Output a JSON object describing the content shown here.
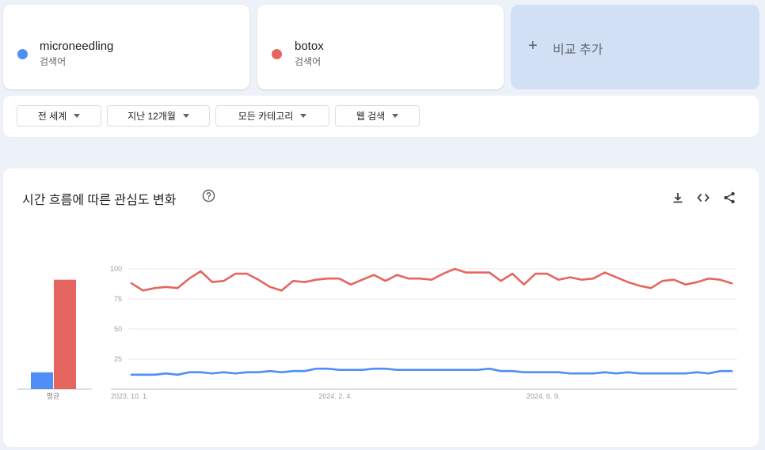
{
  "terms": [
    {
      "name": "microneedling",
      "kind": "검색어",
      "color": "#4f8ef7"
    },
    {
      "name": "botox",
      "kind": "검색어",
      "color": "#e5665e"
    }
  ],
  "add_compare": {
    "plus": "+",
    "label": "비교 추가"
  },
  "filters": [
    {
      "label": "전 세계"
    },
    {
      "label": "지난 12개월"
    },
    {
      "label": "모든 카테고리"
    },
    {
      "label": "웹 검색"
    }
  ],
  "panel": {
    "title": "시간 흐름에 따른 관심도 변화"
  },
  "chart_data": [
    {
      "type": "bar",
      "categories": [
        "평균"
      ],
      "series": [
        {
          "name": "microneedling",
          "values": [
            14
          ],
          "color": "#4f8ef7"
        },
        {
          "name": "botox",
          "values": [
            91
          ],
          "color": "#e5665e"
        }
      ]
    },
    {
      "type": "line",
      "y_ticks": [
        25,
        50,
        75,
        100
      ],
      "ylim": [
        0,
        100
      ],
      "x_tick_labels": [
        {
          "label": "2023. 10. 1.",
          "index": 0
        },
        {
          "label": "2024. 2. 4.",
          "index": 18
        },
        {
          "label": "2024. 6. 9.",
          "index": 36
        }
      ],
      "grid": true,
      "series": [
        {
          "name": "microneedling",
          "color": "#4f8ef7",
          "values": [
            12,
            12,
            12,
            13,
            12,
            14,
            14,
            13,
            14,
            13,
            14,
            14,
            15,
            14,
            15,
            15,
            17,
            17,
            16,
            16,
            16,
            17,
            17,
            16,
            16,
            16,
            16,
            16,
            16,
            16,
            16,
            17,
            15,
            15,
            14,
            14,
            14,
            14,
            13,
            13,
            13,
            14,
            13,
            14,
            13,
            13,
            13,
            13,
            13,
            14,
            13,
            15,
            15
          ]
        },
        {
          "name": "botox",
          "color": "#e5665e",
          "values": [
            88,
            82,
            84,
            85,
            84,
            92,
            98,
            89,
            90,
            96,
            96,
            91,
            85,
            82,
            90,
            89,
            91,
            92,
            92,
            87,
            91,
            95,
            90,
            95,
            92,
            92,
            91,
            96,
            100,
            97,
            97,
            97,
            90,
            96,
            87,
            96,
            96,
            91,
            93,
            91,
            92,
            97,
            93,
            89,
            86,
            84,
            90,
            91,
            87,
            89,
            92,
            91,
            88
          ]
        }
      ]
    }
  ]
}
